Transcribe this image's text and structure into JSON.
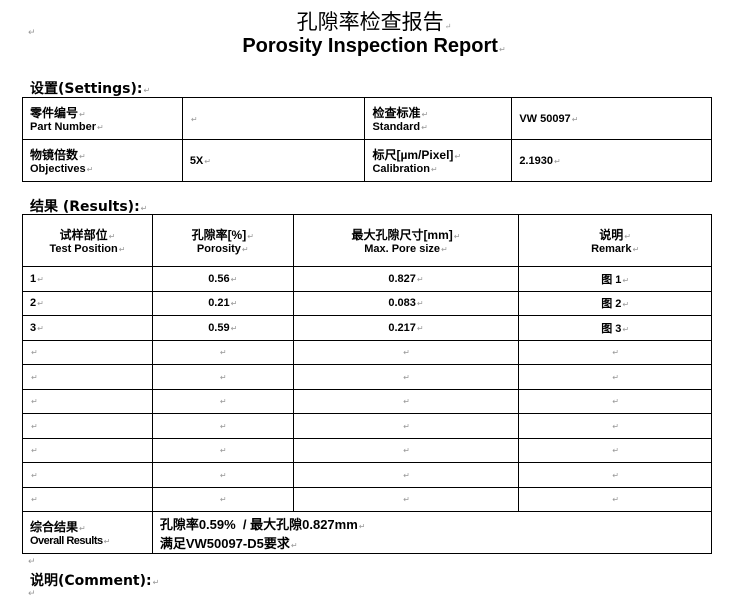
{
  "title_cn": "孔隙率检查报告",
  "title_en": "Porosity Inspection Report",
  "settings": {
    "heading": "设置(Settings):",
    "part_number_cn": "零件编号",
    "part_number_en": "Part Number",
    "part_number_value": "",
    "standard_cn": "检查标准",
    "standard_en": "Standard",
    "standard_value": "VW 50097",
    "objectives_cn": "物镜倍数",
    "objectives_en": "Objectives",
    "objectives_value": "5X",
    "calibration_cn": "标尺[µm/Pixel]",
    "calibration_en": "Calibration",
    "calibration_value": "2.1930"
  },
  "results": {
    "heading": "结果 (Results):",
    "columns": [
      {
        "cn": "试样部位",
        "en": "Test Position"
      },
      {
        "cn": "孔隙率[%]",
        "en": "Porosity"
      },
      {
        "cn": "最大孔隙尺寸[mm]",
        "en": "Max. Pore size"
      },
      {
        "cn": "说明",
        "en": "Remark"
      }
    ],
    "rows": [
      [
        "1",
        "0.56",
        "0.827",
        "图 1"
      ],
      [
        "2",
        "0.21",
        "0.083",
        "图 2"
      ],
      [
        "3",
        "0.59",
        "0.217",
        "图 3"
      ],
      [
        "",
        "",
        "",
        ""
      ],
      [
        "",
        "",
        "",
        ""
      ],
      [
        "",
        "",
        "",
        ""
      ],
      [
        "",
        "",
        "",
        ""
      ],
      [
        "",
        "",
        "",
        ""
      ],
      [
        "",
        "",
        "",
        ""
      ],
      [
        "",
        "",
        "",
        ""
      ]
    ],
    "overall_cn": "综合结果",
    "overall_en": "Overall Results",
    "overall_line1": "孔隙率0.59%  / 最大孔隙0.827mm",
    "overall_line2": "满足VW50097-D5要求"
  },
  "comment_heading": "说明(Comment):"
}
